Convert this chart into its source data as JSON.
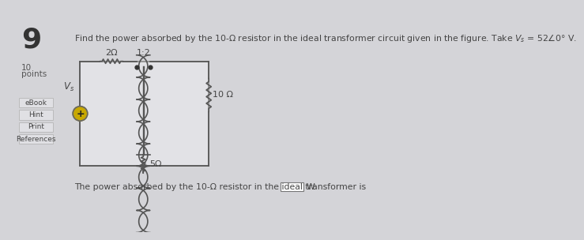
{
  "bg_color": "#d4d4d8",
  "title_number": "9",
  "question_text": "Find the power absorbed by the 10-Ω resistor in the ideal transformer circuit given in the figure. Take V_s = 52∠0° V.",
  "answer_text": "The power absorbed by the 10-Ω resistor in the ideal transformer is",
  "answer_unit": "W.",
  "sidebar_items": [
    "eBook",
    "Hint",
    "Print",
    "References"
  ],
  "points_label": "10\npoints",
  "resistor_2ohm": "2Ω",
  "resistor_5ohm": "5Ω",
  "resistor_10ohm": "10 Ω",
  "transformer_ratio": "1:2",
  "vs_label": "V_s",
  "circuit_bg": "#e2e2e6",
  "wire_color": "#555555",
  "text_color": "#444444",
  "sidebar_bg": "#e0e0e4",
  "sidebar_border": "#bbbbbb"
}
